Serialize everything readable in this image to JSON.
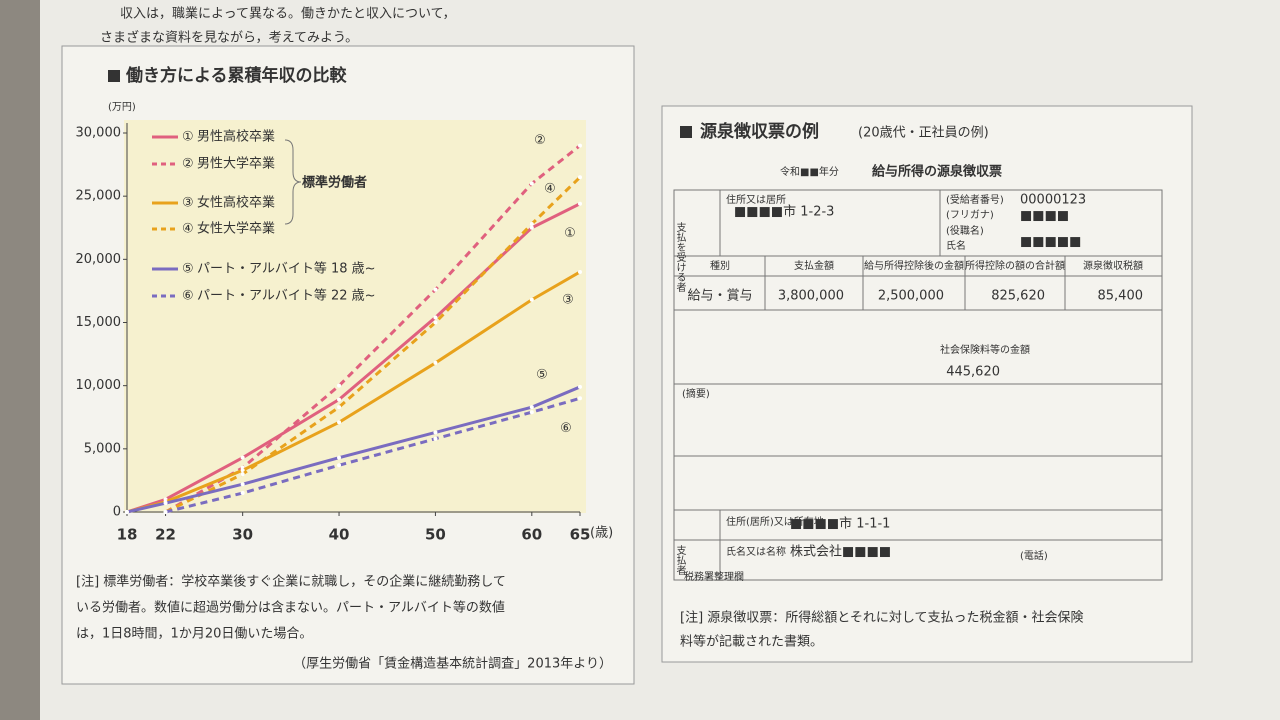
{
  "intro": {
    "line1": "収入は，職業によって異なる。働きかたと収入について，",
    "line2": "さまざまな資料を見ながら，考えてみよう。"
  },
  "chart_data": {
    "type": "line",
    "title": "働き方による累積年収の比較",
    "y_unit": "(万円)",
    "x_unit": "(歳)",
    "x": [
      18,
      22,
      30,
      40,
      50,
      60,
      65
    ],
    "xlim": [
      18,
      65
    ],
    "xticks": [
      18,
      22,
      30,
      40,
      50,
      60,
      65
    ],
    "ylim": [
      0,
      30000
    ],
    "yticks": [
      0,
      {
        "value": 5000,
        "label": "5,000"
      },
      {
        "value": 10000,
        "label": "10,000"
      },
      {
        "value": 15000,
        "label": "15,000"
      },
      {
        "value": 20000,
        "label": "20,000"
      },
      {
        "value": 25000,
        "label": "25,000"
      },
      {
        "value": 30000,
        "label": "30,000"
      }
    ],
    "group_label": "標準労働者",
    "series": [
      {
        "number": "①",
        "name": "男性高校卒業",
        "color": "#e0607e",
        "dashed": false,
        "values": [
          0,
          1000,
          4300,
          8900,
          15400,
          22500,
          24400
        ]
      },
      {
        "number": "②",
        "name": "男性大学卒業",
        "color": "#e0607e",
        "dashed": true,
        "values": [
          null,
          0,
          3500,
          10000,
          17600,
          26000,
          29000
        ]
      },
      {
        "number": "③",
        "name": "女性高校卒業",
        "color": "#e8a21c",
        "dashed": false,
        "values": [
          0,
          800,
          3300,
          7100,
          11800,
          16800,
          19000
        ]
      },
      {
        "number": "④",
        "name": "女性大学卒業",
        "color": "#e8a21c",
        "dashed": true,
        "values": [
          null,
          0,
          3000,
          8300,
          15000,
          22800,
          26500
        ]
      },
      {
        "number": "⑤",
        "name": "パート・アルバイト等 18 歳~",
        "color": "#7a6cc0",
        "dashed": false,
        "values": [
          0,
          700,
          2200,
          4300,
          6300,
          8300,
          9900
        ]
      },
      {
        "number": "⑥",
        "name": "パート・アルバイト等 22 歳~",
        "color": "#7a6cc0",
        "dashed": true,
        "values": [
          null,
          0,
          1500,
          3700,
          5800,
          7900,
          9000
        ]
      }
    ],
    "note": [
      "[注] 標準労働者：学校卒業後すぐ企業に就職し，その企業に継続勤務して",
      "いる労働者。数値に超過労働分は含まない。パート・アルバイト等の数値",
      "は，1日8時間，1か月20日働いた場合。"
    ],
    "source": "（厚生労働省「賃金構造基本統計調査」2013年より）"
  },
  "form": {
    "title": "源泉徴収票の例",
    "subtitle": "(20歳代・正社員の例)",
    "year": "令和■■年分",
    "heading": "給与所得の源泉徴収票",
    "payee": "支払を受ける者",
    "address_label": "住所又は居所",
    "address": "■■■■市 1-2-3",
    "number_label": "(受給者番号)",
    "number": "00000123",
    "furigana": "(フリガナ)",
    "furigana_value": "■■■■",
    "position": "(役職名)",
    "name_label": "氏名",
    "name_value": "■■■■■",
    "columns": [
      "種別",
      "支払金額",
      "給与所得控除後の金額",
      "所得控除の額の合計額",
      "源泉徴収税額"
    ],
    "row": [
      "給与・賞与",
      "3,800,000",
      "2,500,000",
      "825,620",
      "85,400"
    ],
    "insurance_label": "社会保険料等の金額",
    "insurance": "445,620",
    "remarks": "(摘要)",
    "payer": "支払者",
    "payer_address_label": "住所(居所)又は所在地",
    "payer_address": "■■■■市 1-1-1",
    "payer_name_label": "氏名又は名称",
    "payer_name": "株式会社■■■■",
    "phone": "(電話)",
    "office": "税務署整理欄",
    "note": [
      "[注] 源泉徴収票：所得総額とそれに対して支払った税金額・社会保険",
      "料等が記載された書類。"
    ]
  }
}
